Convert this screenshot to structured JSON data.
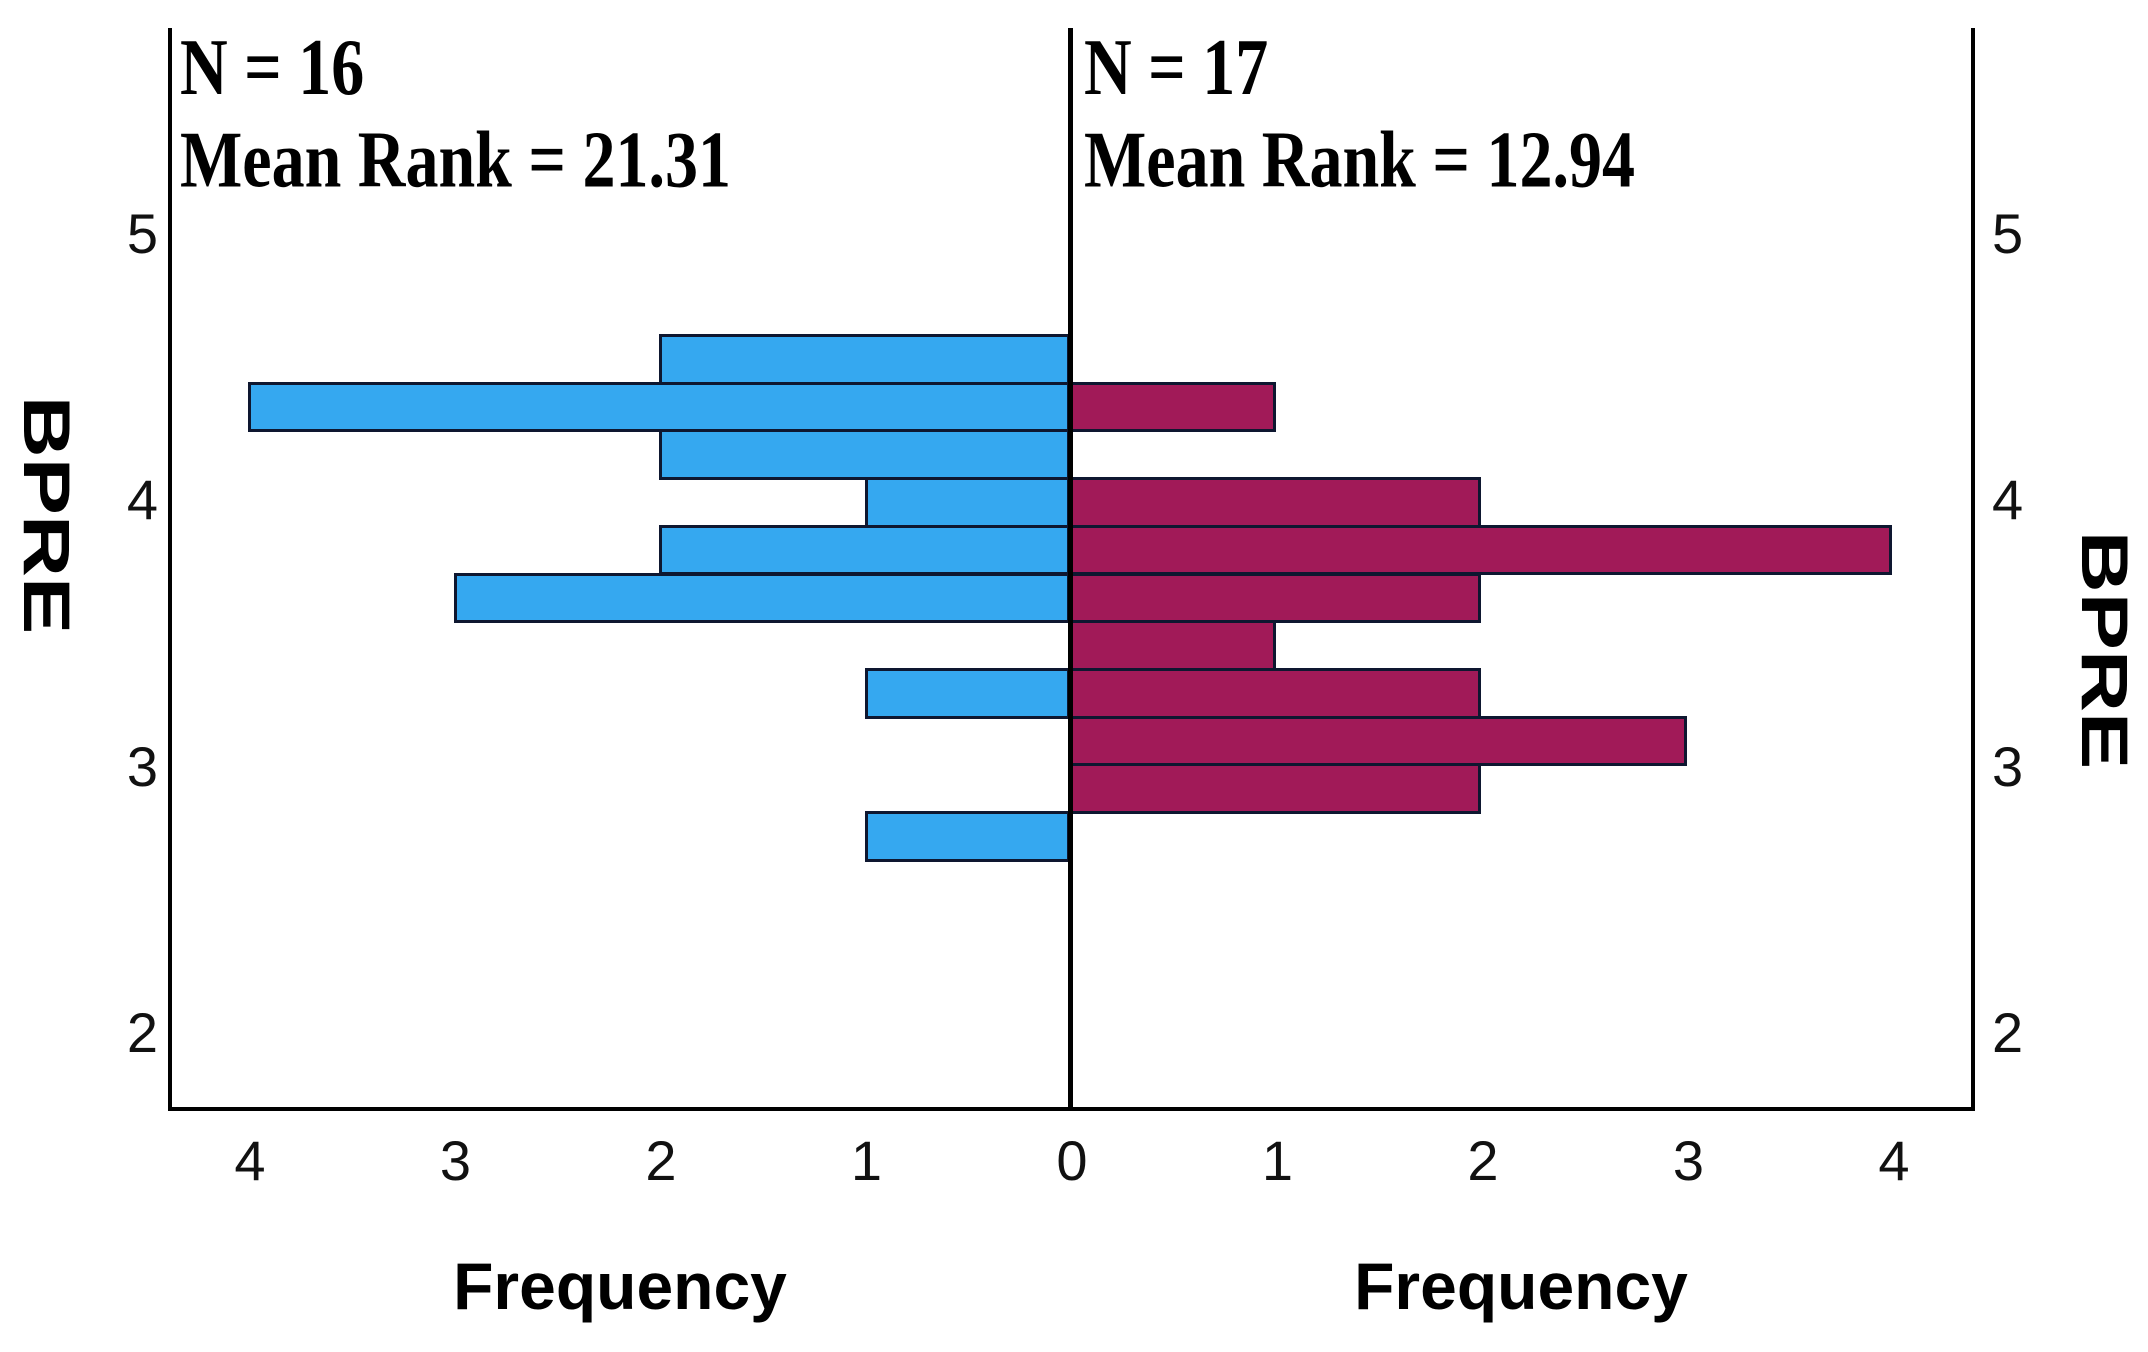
{
  "panels": {
    "left": {
      "annotation_line1": "N = 16",
      "annotation_line2": "Mean Rank = 21.31",
      "xlabel": "Frequency",
      "x_tick_values": [
        4,
        3,
        2,
        1,
        0
      ],
      "group_color": "#35A8F0"
    },
    "right": {
      "annotation_line1": "N = 17",
      "annotation_line2": "Mean Rank = 12.94",
      "xlabel": "Frequency",
      "x_tick_values": [
        1,
        2,
        3,
        4
      ],
      "group_color": "#A11A58"
    }
  },
  "y_axis": {
    "label_left": "BPRE",
    "label_right": "BPRE",
    "tick_values": [
      5,
      4,
      3,
      2
    ]
  },
  "colors": {
    "left_bar_fill": "#35A8F0",
    "right_bar_fill": "#A11A58",
    "bar_border": "#0E1730",
    "axis": "#000000",
    "background": "#ffffff"
  },
  "chart_data": {
    "type": "bar",
    "subtype": "back-to-back horizontal histogram (population pyramid)",
    "y_variable": "BPRE",
    "xlabel": "Frequency",
    "x_range_each_side": [
      0,
      4.4
    ],
    "y_axis_tick_values": [
      5,
      4,
      3,
      2
    ],
    "bin_width_bpre": 0.18,
    "bpre_bin_centers": [
      4.54,
      4.36,
      4.18,
      4.0,
      3.82,
      3.64,
      3.46,
      3.28,
      3.1,
      2.93,
      2.75
    ],
    "series": [
      {
        "name": "left group",
        "n": 16,
        "mean_rank": 21.31,
        "color": "#35A8F0",
        "values": [
          2,
          4,
          2,
          1,
          2,
          3,
          0,
          1,
          0,
          0,
          1
        ]
      },
      {
        "name": "right group",
        "n": 17,
        "mean_rank": 12.94,
        "color": "#A11A58",
        "values": [
          0,
          1,
          0,
          2,
          4,
          2,
          1,
          2,
          3,
          2,
          0
        ]
      }
    ],
    "legend_position": "none",
    "grid": false
  }
}
